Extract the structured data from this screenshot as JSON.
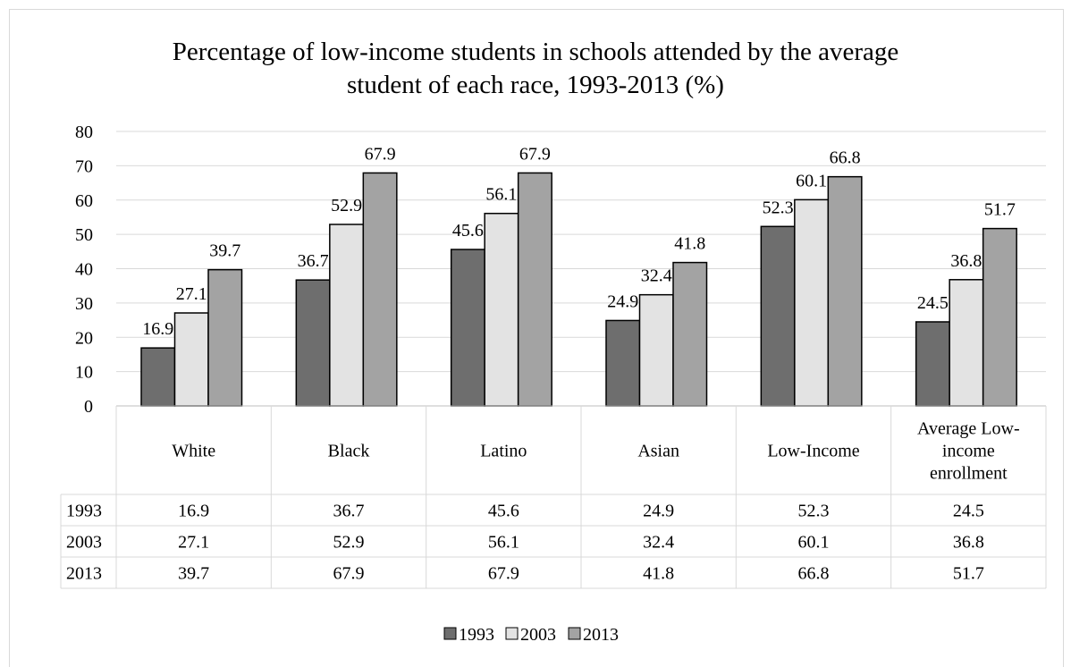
{
  "chart_data": {
    "type": "bar",
    "title": "Percentage of low-income students in schools attended by the average student of each race, 1993-2013 (%)",
    "title_lines": [
      "Percentage of low-income students in schools attended by the average",
      "student of each race, 1993-2013 (%)"
    ],
    "categories": [
      "White",
      "Black",
      "Latino",
      "Asian",
      "Low-Income",
      "Average Low-income enrollment"
    ],
    "category_lines": [
      [
        "White"
      ],
      [
        "Black"
      ],
      [
        "Latino"
      ],
      [
        "Asian"
      ],
      [
        "Low-Income"
      ],
      [
        "Average Low-",
        "income",
        "enrollment"
      ]
    ],
    "series": [
      {
        "name": "1993",
        "color": "#6e6e6e",
        "values": [
          16.9,
          36.7,
          45.6,
          24.9,
          52.3,
          24.5
        ],
        "labels": [
          "16.9",
          "36.7",
          "45.6",
          "24.9",
          "52.3",
          "24.5"
        ]
      },
      {
        "name": "2003",
        "color": "#e3e3e3",
        "values": [
          27.1,
          52.9,
          56.1,
          32.4,
          60.1,
          36.8
        ],
        "labels": [
          "27.1",
          "52.9",
          "56.1",
          "32.4",
          "60.1",
          "36.8"
        ]
      },
      {
        "name": "2013",
        "color": "#a3a3a3",
        "values": [
          39.7,
          67.9,
          67.9,
          41.8,
          66.8,
          51.7
        ],
        "labels": [
          "39.7",
          "67.9",
          "67.9",
          "41.8",
          "66.8",
          "51.7"
        ]
      }
    ],
    "ylim": [
      0,
      80
    ],
    "yticks": [
      0,
      10,
      20,
      30,
      40,
      50,
      60,
      70,
      80
    ],
    "grid": true,
    "legend": "bottom",
    "data_table": true
  }
}
